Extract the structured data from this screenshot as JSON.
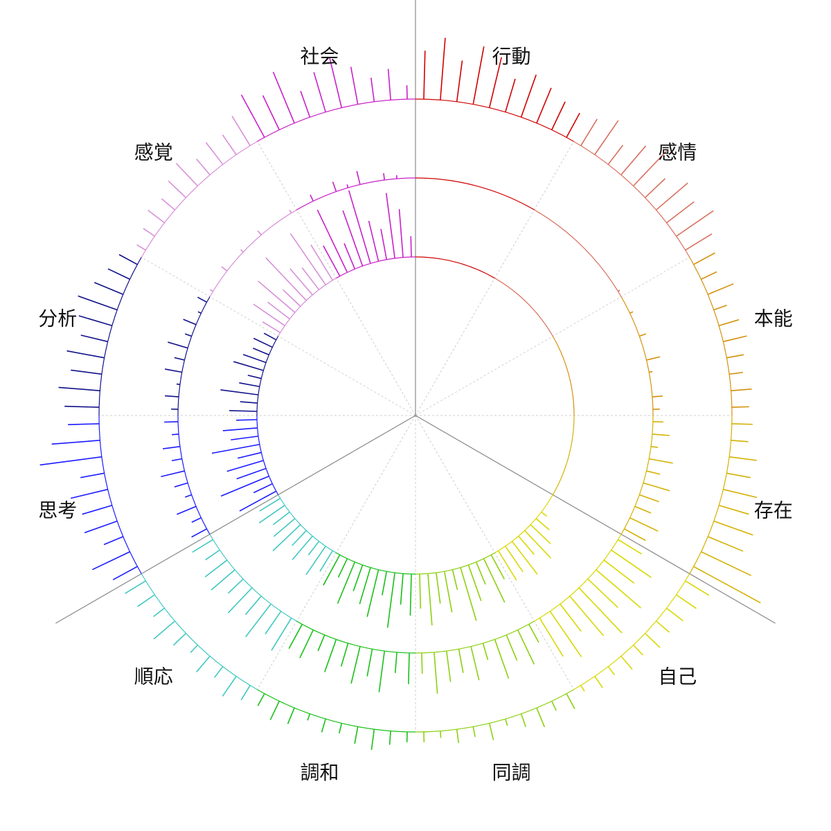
{
  "chart_data": {
    "type": "radial_bar",
    "sectors": [
      {
        "label": "行動",
        "color": "#d00000"
      },
      {
        "label": "感情",
        "color": "#d87060"
      },
      {
        "label": "本能",
        "color": "#d4900a"
      },
      {
        "label": "存在",
        "color": "#d4b000"
      },
      {
        "label": "自己",
        "color": "#d8d800"
      },
      {
        "label": "同調",
        "color": "#8cd010"
      },
      {
        "label": "調和",
        "color": "#18c018"
      },
      {
        "label": "順応",
        "color": "#40c8c0"
      },
      {
        "label": "思考",
        "color": "#1a1aff"
      },
      {
        "label": "分析",
        "color": "#10108a"
      },
      {
        "label": "感覚",
        "color": "#d890d8"
      },
      {
        "label": "社会",
        "color": "#c820c8"
      }
    ],
    "rings": [
      {
        "values": [
          0,
          0,
          0,
          0,
          0,
          0,
          0,
          0,
          0,
          0,
          0,
          0,
          0,
          0,
          0,
          0,
          0,
          0,
          0,
          0,
          0,
          0,
          0,
          0,
          0,
          0,
          0,
          0,
          0,
          0,
          0,
          0,
          0,
          0,
          0,
          0,
          0,
          0,
          0,
          0,
          0,
          0,
          10,
          25,
          40,
          55,
          35,
          60,
          45,
          50,
          40,
          70,
          35,
          55,
          80,
          30,
          60,
          45,
          75,
          50,
          60,
          45,
          80,
          35,
          70,
          55,
          40,
          65,
          30,
          50,
          35,
          50,
          25,
          45,
          30,
          55,
          40,
          30,
          45,
          35,
          60,
          30,
          75,
          45,
          55,
          35,
          70,
          40,
          50,
          30,
          40,
          25,
          55,
          30,
          20,
          45,
          35,
          25,
          30,
          20,
          30,
          55,
          40,
          70,
          35,
          85,
          50,
          40,
          90,
          60,
          50,
          100,
          40,
          85,
          110,
          60,
          45,
          95,
          70,
          30
        ]
      },
      {
        "values": [
          0,
          0,
          0,
          0,
          0,
          0,
          0,
          0,
          0,
          0,
          0,
          0,
          0,
          0,
          0,
          0,
          0,
          0,
          0,
          3,
          0,
          5,
          0,
          10,
          0,
          20,
          5,
          0,
          15,
          10,
          15,
          25,
          10,
          35,
          20,
          40,
          30,
          25,
          45,
          35,
          40,
          70,
          55,
          85,
          60,
          90,
          75,
          50,
          80,
          65,
          30,
          55,
          40,
          60,
          25,
          50,
          35,
          45,
          60,
          30,
          45,
          30,
          60,
          40,
          55,
          35,
          50,
          25,
          45,
          40,
          55,
          40,
          60,
          35,
          50,
          30,
          45,
          40,
          25,
          35,
          25,
          15,
          30,
          10,
          20,
          35,
          15,
          25,
          10,
          20,
          10,
          20,
          5,
          25,
          15,
          30,
          10,
          20,
          5,
          15,
          5,
          0,
          10,
          0,
          5,
          0,
          8,
          0,
          0,
          5,
          0,
          10,
          0,
          15,
          5,
          20,
          0,
          10,
          5,
          0
        ]
      },
      {
        "values": [
          70,
          90,
          60,
          85,
          75,
          50,
          65,
          55,
          45,
          40,
          45,
          60,
          35,
          55,
          70,
          40,
          60,
          50,
          65,
          45,
          35,
          25,
          40,
          20,
          30,
          35,
          25,
          20,
          30,
          25,
          30,
          25,
          40,
          35,
          50,
          45,
          60,
          55,
          80,
          110,
          40,
          35,
          30,
          25,
          30,
          20,
          25,
          15,
          20,
          10,
          25,
          15,
          30,
          20,
          10,
          25,
          15,
          20,
          10,
          15,
          15,
          20,
          30,
          25,
          15,
          20,
          10,
          25,
          30,
          20,
          25,
          35,
          20,
          30,
          15,
          25,
          40,
          20,
          30,
          35,
          40,
          60,
          30,
          50,
          45,
          55,
          35,
          90,
          70,
          45,
          50,
          60,
          45,
          55,
          40,
          50,
          60,
          45,
          35,
          30,
          15,
          20,
          30,
          25,
          35,
          45,
          30,
          40,
          35,
          50,
          70,
          55,
          80,
          40,
          60,
          75,
          55,
          35,
          45,
          20
        ]
      }
    ]
  }
}
